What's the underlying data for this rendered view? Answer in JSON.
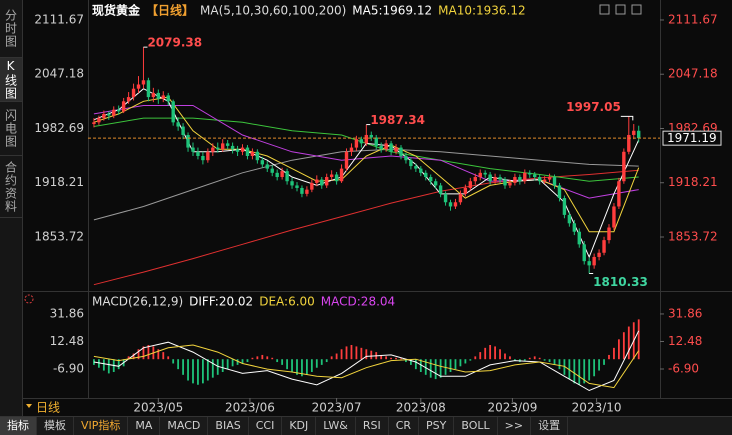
{
  "sidebar": [
    "分时图",
    "K线图",
    "闪电图",
    "合约资料"
  ],
  "chart_data": [
    {
      "type": "candlestick",
      "title": "现货黄金",
      "period": "【日线】",
      "indicator": "MA(5,10,30,60,100,200)",
      "up_color": "#ff3d3d",
      "down_color": "#1ec37a",
      "last_price_color": "#e08a2a",
      "ylim": [
        1793.1,
        2125.9
      ],
      "yticks": [
        1853.72,
        1918.21,
        1982.69,
        2047.18,
        2111.67
      ],
      "xlim": [
        -1.2,
        114.3
      ],
      "xticks": [
        {
          "value": 13,
          "label": "2023/05"
        },
        {
          "value": 31.5,
          "label": "2023/06"
        },
        {
          "value": 49,
          "label": "2023/07"
        },
        {
          "value": 66,
          "label": "2023/08"
        },
        {
          "value": 84.5,
          "label": "2023/09"
        },
        {
          "value": 101.5,
          "label": "2023/10"
        }
      ],
      "candles": [
        [
          1988,
          1995,
          1984,
          1990
        ],
        [
          1990,
          1998,
          1987,
          1995
        ],
        [
          1995,
          2004,
          1992,
          2000
        ],
        [
          2000,
          2003,
          1993,
          1998
        ],
        [
          1998,
          2009,
          1995,
          2005
        ],
        [
          2005,
          2010,
          1999,
          2003
        ],
        [
          2003,
          2019,
          2001,
          2015
        ],
        [
          2015,
          2026,
          2012,
          2020
        ],
        [
          2020,
          2036,
          2016,
          2030
        ],
        [
          2030,
          2045,
          2025,
          2035
        ],
        [
          2035,
          2079.38,
          2030,
          2040
        ],
        [
          2040,
          2043,
          2015,
          2020
        ],
        [
          2020,
          2031,
          2014,
          2025
        ],
        [
          2025,
          2029,
          2012,
          2018
        ],
        [
          2018,
          2027,
          2014,
          2022
        ],
        [
          2022,
          2025,
          2010,
          2015
        ],
        [
          2015,
          2017,
          1986,
          1990
        ],
        [
          1990,
          1996,
          1980,
          1985
        ],
        [
          1985,
          1989,
          1970,
          1975
        ],
        [
          1975,
          1978,
          1955,
          1960
        ],
        [
          1960,
          1966,
          1950,
          1955
        ],
        [
          1955,
          1960,
          1946,
          1950
        ],
        [
          1950,
          1955,
          1940,
          1945
        ],
        [
          1945,
          1959,
          1942,
          1955
        ],
        [
          1955,
          1965,
          1950,
          1960
        ],
        [
          1960,
          1966,
          1954,
          1958
        ],
        [
          1958,
          1970,
          1955,
          1965
        ],
        [
          1965,
          1969,
          1958,
          1962
        ],
        [
          1962,
          1966,
          1953,
          1958
        ],
        [
          1958,
          1962,
          1950,
          1955
        ],
        [
          1955,
          1964,
          1951,
          1960
        ],
        [
          1960,
          1963,
          1946,
          1950
        ],
        [
          1950,
          1959,
          1946,
          1955
        ],
        [
          1955,
          1958,
          1941,
          1945
        ],
        [
          1945,
          1949,
          1936,
          1940
        ],
        [
          1940,
          1944,
          1931,
          1935
        ],
        [
          1935,
          1939,
          1926,
          1930
        ],
        [
          1930,
          1934,
          1921,
          1925
        ],
        [
          1925,
          1936,
          1922,
          1932
        ],
        [
          1932,
          1935,
          1916,
          1920
        ],
        [
          1920,
          1924,
          1911,
          1915
        ],
        [
          1915,
          1919,
          1908,
          1912
        ],
        [
          1912,
          1915,
          1901,
          1905
        ],
        [
          1905,
          1914,
          1902,
          1910
        ],
        [
          1910,
          1922,
          1907,
          1918
        ],
        [
          1918,
          1927,
          1914,
          1922
        ],
        [
          1922,
          1925,
          1911,
          1915
        ],
        [
          1915,
          1929,
          1912,
          1925
        ],
        [
          1925,
          1933,
          1921,
          1928
        ],
        [
          1928,
          1931,
          1916,
          1920
        ],
        [
          1920,
          1940,
          1918,
          1935
        ],
        [
          1935,
          1959,
          1932,
          1955
        ],
        [
          1955,
          1965,
          1950,
          1960
        ],
        [
          1960,
          1974,
          1956,
          1970
        ],
        [
          1970,
          1973,
          1960,
          1965
        ],
        [
          1965,
          1987.34,
          1962,
          1975
        ],
        [
          1975,
          1979,
          1968,
          1972
        ],
        [
          1972,
          1975,
          1958,
          1962
        ],
        [
          1962,
          1966,
          1954,
          1958
        ],
        [
          1958,
          1969,
          1955,
          1965
        ],
        [
          1965,
          1968,
          1951,
          1955
        ],
        [
          1955,
          1964,
          1952,
          1960
        ],
        [
          1960,
          1963,
          1946,
          1950
        ],
        [
          1950,
          1954,
          1941,
          1945
        ],
        [
          1945,
          1948,
          1934,
          1938
        ],
        [
          1938,
          1941,
          1931,
          1935
        ],
        [
          1935,
          1938,
          1926,
          1930
        ],
        [
          1930,
          1933,
          1921,
          1925
        ],
        [
          1925,
          1928,
          1916,
          1920
        ],
        [
          1920,
          1923,
          1911,
          1915
        ],
        [
          1915,
          1918,
          1901,
          1905
        ],
        [
          1905,
          1908,
          1891,
          1895
        ],
        [
          1895,
          1898,
          1885,
          1890
        ],
        [
          1890,
          1899,
          1887,
          1895
        ],
        [
          1895,
          1909,
          1892,
          1905
        ],
        [
          1905,
          1916,
          1902,
          1912
        ],
        [
          1912,
          1924,
          1909,
          1920
        ],
        [
          1920,
          1929,
          1916,
          1925
        ],
        [
          1925,
          1934,
          1921,
          1930
        ],
        [
          1930,
          1933,
          1924,
          1928
        ],
        [
          1928,
          1931,
          1916,
          1920
        ],
        [
          1920,
          1929,
          1917,
          1925
        ],
        [
          1925,
          1928,
          1918,
          1922
        ],
        [
          1922,
          1925,
          1911,
          1915
        ],
        [
          1915,
          1922,
          1912,
          1918
        ],
        [
          1918,
          1929,
          1915,
          1925
        ],
        [
          1925,
          1928,
          1916,
          1920
        ],
        [
          1920,
          1934,
          1917,
          1930
        ],
        [
          1930,
          1933,
          1924,
          1928
        ],
        [
          1928,
          1931,
          1921,
          1925
        ],
        [
          1925,
          1928,
          1916,
          1920
        ],
        [
          1920,
          1926,
          1917,
          1922
        ],
        [
          1922,
          1929,
          1919,
          1925
        ],
        [
          1925,
          1928,
          1911,
          1915
        ],
        [
          1915,
          1918,
          1896,
          1900
        ],
        [
          1900,
          1903,
          1876,
          1880
        ],
        [
          1880,
          1884,
          1866,
          1870
        ],
        [
          1870,
          1874,
          1856,
          1860
        ],
        [
          1860,
          1864,
          1841,
          1845
        ],
        [
          1845,
          1849,
          1821,
          1825
        ],
        [
          1825,
          1829,
          1810.33,
          1820
        ],
        [
          1820,
          1834,
          1816,
          1830
        ],
        [
          1830,
          1839,
          1826,
          1835
        ],
        [
          1835,
          1854,
          1832,
          1850
        ],
        [
          1850,
          1869,
          1846,
          1865
        ],
        [
          1865,
          1894,
          1862,
          1890
        ],
        [
          1890,
          1924,
          1887,
          1920
        ],
        [
          1920,
          1959,
          1917,
          1955
        ],
        [
          1955,
          1997.05,
          1952,
          1975
        ],
        [
          1975,
          1988,
          1970,
          1980
        ],
        [
          1980,
          1986,
          1966,
          1971.19
        ]
      ],
      "ma_series": [
        {
          "label": "MA5:1969.12",
          "color": "#ffffff",
          "x": [
            0,
            5,
            10,
            15,
            20,
            25,
            30,
            35,
            40,
            45,
            50,
            55,
            60,
            65,
            70,
            75,
            80,
            85,
            90,
            95,
            100,
            105,
            110
          ],
          "values": [
            1993,
            2005,
            2030,
            2015,
            1955,
            1955,
            1958,
            1945,
            1925,
            1915,
            1925,
            1965,
            1962,
            1940,
            1905,
            1905,
            1925,
            1920,
            1922,
            1895,
            1830,
            1905,
            1969.12
          ]
        },
        {
          "label": "MA10:1936.12",
          "color": "#f2d43d",
          "x": [
            0,
            5,
            10,
            15,
            20,
            25,
            30,
            35,
            40,
            45,
            50,
            55,
            60,
            65,
            70,
            75,
            80,
            85,
            90,
            95,
            100,
            105,
            110
          ],
          "values": [
            1990,
            2000,
            2015,
            2020,
            1980,
            1958,
            1958,
            1950,
            1935,
            1920,
            1922,
            1950,
            1963,
            1950,
            1925,
            1900,
            1915,
            1920,
            1922,
            1910,
            1860,
            1860,
            1936.12
          ]
        },
        {
          "color": "#c040e0",
          "x": [
            0,
            10,
            20,
            30,
            40,
            50,
            60,
            70,
            80,
            90,
            100,
            110
          ],
          "values": [
            2000,
            2010,
            2010,
            1975,
            1955,
            1945,
            1950,
            1945,
            1920,
            1922,
            1900,
            1910
          ]
        },
        {
          "color": "#3cc43c",
          "x": [
            0,
            10,
            20,
            30,
            40,
            50,
            60,
            70,
            80,
            90,
            100,
            110
          ],
          "values": [
            1985,
            1995,
            1995,
            1990,
            1980,
            1975,
            1955,
            1945,
            1935,
            1928,
            1920,
            1925
          ]
        },
        {
          "color": "#9a9a9a",
          "x": [
            0,
            10,
            20,
            30,
            40,
            50,
            60,
            70,
            80,
            90,
            100,
            110
          ],
          "values": [
            1874,
            1890,
            1910,
            1930,
            1945,
            1955,
            1958,
            1955,
            1950,
            1945,
            1940,
            1938
          ]
        },
        {
          "color": "#e03030",
          "x": [
            0,
            10,
            20,
            30,
            40,
            50,
            60,
            70,
            80,
            90,
            100,
            110
          ],
          "values": [
            1797,
            1812,
            1828,
            1845,
            1862,
            1878,
            1894,
            1908,
            1918,
            1924,
            1928,
            1933
          ]
        }
      ]
    },
    {
      "type": "macd",
      "title": "MACD(26,12,9)",
      "ylim": [
        -25.2,
        44.5
      ],
      "yticks": [
        31.86,
        12.48,
        {
          "value": -6.9,
          "label": "-6.90"
        }
      ],
      "histogram": {
        "label": "MACD:28.04",
        "label_color": "#d946ef",
        "up_color": "#ff3d3d",
        "down_color": "#1ec37a",
        "values": [
          -4,
          -6,
          -8,
          -10,
          -9,
          -7,
          -5,
          2,
          4,
          7,
          9,
          10,
          9,
          7,
          5,
          2,
          -3,
          -7,
          -11,
          -15,
          -17,
          -18,
          -17,
          -15,
          -13,
          -11,
          -9,
          -7,
          -5,
          -4,
          -3,
          -2,
          1,
          2,
          3,
          2,
          1,
          -2,
          -4,
          -7,
          -9,
          -11,
          -12,
          -11,
          -9,
          -6,
          -4,
          -2,
          2,
          4,
          7,
          9,
          10,
          9,
          8,
          7,
          6,
          5,
          3,
          2,
          1,
          1,
          0.5,
          -2,
          -4,
          -7,
          -9,
          -11,
          -13,
          -14,
          -13,
          -11,
          -9,
          -7,
          -5,
          -3,
          -1,
          2,
          5,
          8,
          10,
          9,
          7,
          4,
          2,
          -1,
          -2,
          -1,
          1,
          2,
          1,
          -1,
          -2,
          -4,
          -7,
          -11,
          -14,
          -17,
          -18,
          -17,
          -15,
          -12,
          -8,
          -4,
          3,
          8,
          14,
          19,
          23,
          26,
          28.04
        ]
      },
      "series": [
        {
          "label": "DIFF:20.02",
          "color": "#ffffff",
          "x": [
            0,
            5,
            10,
            15,
            20,
            25,
            30,
            35,
            40,
            45,
            50,
            55,
            60,
            65,
            70,
            75,
            80,
            85,
            90,
            95,
            100,
            105,
            110
          ],
          "values": [
            -2,
            -5,
            8,
            12,
            5,
            -5,
            -10,
            -8,
            -14,
            -18,
            -10,
            2,
            3,
            -2,
            -12,
            -12,
            -4,
            -1,
            -2,
            -12,
            -22,
            -15,
            20.02
          ]
        },
        {
          "label": "DEA:6.00",
          "color": "#f2d43d",
          "x": [
            0,
            5,
            10,
            15,
            20,
            25,
            30,
            35,
            40,
            45,
            50,
            55,
            60,
            65,
            70,
            75,
            80,
            85,
            90,
            95,
            100,
            105,
            110
          ],
          "values": [
            2,
            -1,
            2,
            8,
            10,
            5,
            -3,
            -7,
            -9,
            -12,
            -13,
            -6,
            -1,
            0,
            -5,
            -9,
            -8,
            -4,
            -2,
            -5,
            -17,
            -20,
            6
          ]
        }
      ]
    }
  ],
  "period_selector": "日线",
  "toolbar": [
    "指标",
    "模板",
    "VIP指标",
    "MA",
    "MACD",
    "BIAS",
    "CCI",
    "KDJ",
    "LW&",
    "RSI",
    "CR",
    "PSY",
    "BOLL",
    ">>",
    "设置"
  ]
}
